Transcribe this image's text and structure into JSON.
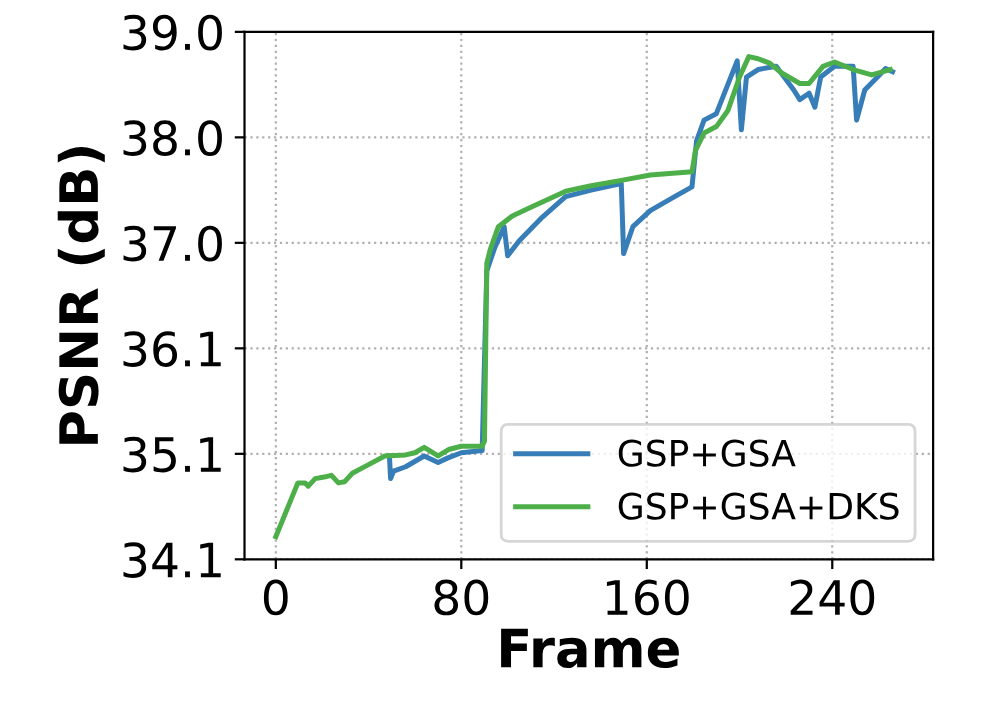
{
  "chart_data": {
    "type": "line",
    "xlabel": "Frame",
    "ylabel": "PSNR (dB)",
    "xlim": [
      -13.5,
      283.5
    ],
    "ylim": [
      34.1,
      39.0
    ],
    "xticks": [
      0,
      80,
      160,
      240
    ],
    "yticks": [
      34.1,
      {
        "value": 35.08,
        "label": "35.1"
      },
      {
        "value": 36.06,
        "label": "36.1"
      },
      {
        "value": 37.04,
        "label": "37.0"
      },
      {
        "value": 38.02,
        "label": "38.0"
      },
      {
        "value": 39.0,
        "label": "39.0"
      }
    ],
    "grid": true,
    "legend": "bottom right",
    "line_style": "solid",
    "marker": "none",
    "series": [
      {
        "name": "GSP+GSA",
        "color": "#377eb8",
        "x": [
          49,
          49.5,
          50.8,
          56,
          64,
          70,
          74,
          80,
          89,
          91,
          94.5,
          98.5,
          100,
          105,
          115,
          125,
          136,
          149,
          150,
          154,
          161.5,
          172,
          179.5,
          181.5,
          184.7,
          190,
          199,
          200.8,
          203,
          208,
          215.8,
          223.4,
          226,
          230,
          232.5,
          235,
          241,
          249,
          250.5,
          254,
          259.5,
          263,
          266
        ],
        "values": [
          35.06,
          34.85,
          34.92,
          34.96,
          35.06,
          35.0,
          35.04,
          35.09,
          35.11,
          36.78,
          37.0,
          37.19,
          36.92,
          37.06,
          37.28,
          37.47,
          37.53,
          37.59,
          36.94,
          37.19,
          37.34,
          37.47,
          37.56,
          37.99,
          38.18,
          38.24,
          38.73,
          38.09,
          38.58,
          38.65,
          38.68,
          38.46,
          38.37,
          38.43,
          38.3,
          38.58,
          38.68,
          38.68,
          38.18,
          38.46,
          38.58,
          38.66,
          38.63
        ]
      },
      {
        "name": "GSP+GSA+DKS",
        "color": "#4daf4a",
        "x": [
          0,
          5.7,
          9.5,
          12.6,
          14,
          17,
          22,
          24,
          27,
          29.6,
          33,
          40,
          47,
          56,
          60,
          64,
          70,
          74.5,
          80,
          89,
          90,
          91,
          92.5,
          96,
          102,
          110,
          118,
          125,
          136,
          149,
          161.5,
          179.5,
          181,
          184.7,
          190,
          195,
          200,
          204,
          208,
          213,
          218,
          226,
          230,
          236,
          241,
          249,
          257,
          262,
          265
        ],
        "values": [
          34.31,
          34.61,
          34.81,
          34.81,
          34.78,
          34.85,
          34.87,
          34.88,
          34.81,
          34.82,
          34.9,
          34.98,
          35.06,
          35.07,
          35.09,
          35.14,
          35.06,
          35.12,
          35.15,
          35.15,
          35.2,
          36.85,
          36.98,
          37.19,
          37.29,
          37.37,
          37.45,
          37.52,
          37.57,
          37.62,
          37.67,
          37.7,
          37.9,
          38.06,
          38.12,
          38.27,
          38.58,
          38.77,
          38.75,
          38.71,
          38.62,
          38.52,
          38.52,
          38.68,
          38.72,
          38.65,
          38.6,
          38.63,
          38.65
        ]
      }
    ]
  }
}
